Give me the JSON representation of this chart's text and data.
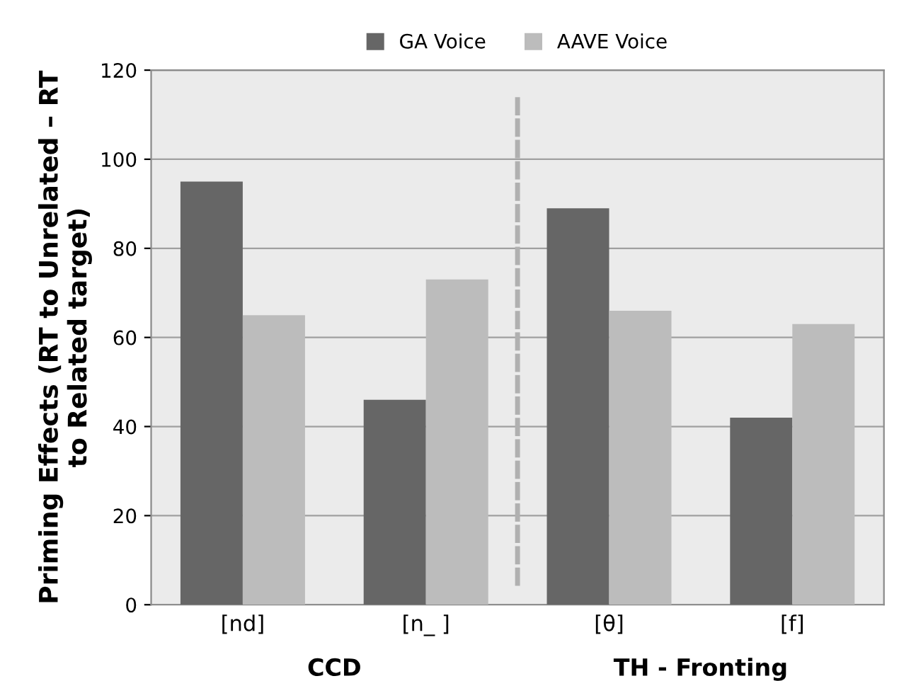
{
  "chart_data": {
    "type": "bar",
    "ylabel": "Priming Effects (RT to Unrelated – RT\nto Related target)",
    "categories": [
      "[nd]",
      "[n_ ]",
      "[θ]",
      "[f]"
    ],
    "series": [
      {
        "name": "GA Voice",
        "color": "#666666",
        "values": [
          95,
          46,
          89,
          42
        ]
      },
      {
        "name": "AAVE Voice",
        "color": "#bcbcbc",
        "values": [
          65,
          73,
          66,
          63
        ]
      }
    ],
    "ylim": [
      0,
      120
    ],
    "yticks": [
      0,
      20,
      40,
      60,
      80,
      100,
      120
    ],
    "grid": "y",
    "legend": "top",
    "annotations": [
      "CCD",
      "TH - Fronting"
    ]
  }
}
